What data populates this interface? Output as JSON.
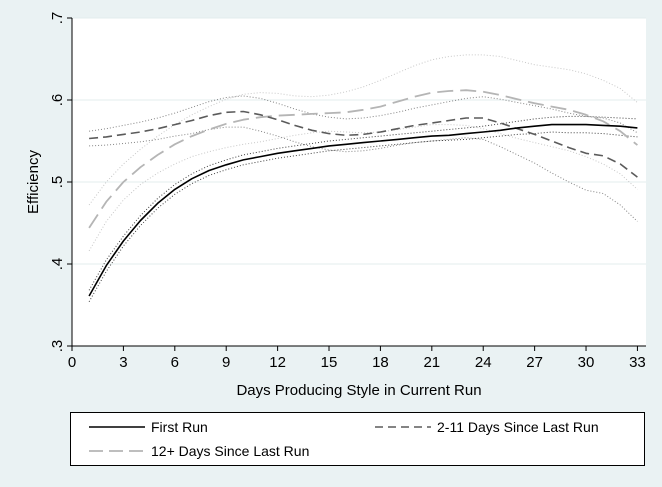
{
  "chart_data": {
    "type": "line",
    "title": "",
    "xlabel": "Days Producing Style in Current Run",
    "ylabel": "Efficiency",
    "xlim": [
      0,
      33.5
    ],
    "ylim": [
      0.3,
      0.7
    ],
    "xticks": [
      0,
      3,
      6,
      9,
      12,
      15,
      18,
      21,
      24,
      27,
      30,
      33
    ],
    "yticks": [
      0.3,
      0.4,
      0.5,
      0.6,
      0.7
    ],
    "ytick_labels": [
      ".3",
      ".4",
      ".5",
      ".6",
      ".7"
    ],
    "grid": true,
    "legend_placement": "bottom",
    "series": [
      {
        "name": "First Run",
        "style": "solid",
        "color": "#000000",
        "x": [
          1,
          2,
          3,
          4,
          5,
          6,
          7,
          8,
          9,
          10,
          11,
          12,
          13,
          14,
          15,
          16,
          17,
          18,
          19,
          20,
          21,
          22,
          23,
          24,
          25,
          26,
          27,
          28,
          29,
          30,
          31,
          32,
          33
        ],
        "y": [
          0.361,
          0.398,
          0.428,
          0.453,
          0.474,
          0.491,
          0.504,
          0.514,
          0.521,
          0.527,
          0.531,
          0.535,
          0.538,
          0.541,
          0.544,
          0.546,
          0.548,
          0.55,
          0.552,
          0.554,
          0.556,
          0.557,
          0.559,
          0.561,
          0.563,
          0.566,
          0.568,
          0.57,
          0.57,
          0.57,
          0.569,
          0.568,
          0.566
        ],
        "ci_upper": [
          0.368,
          0.405,
          0.434,
          0.459,
          0.48,
          0.497,
          0.51,
          0.52,
          0.527,
          0.533,
          0.537,
          0.541,
          0.544,
          0.547,
          0.55,
          0.552,
          0.554,
          0.556,
          0.558,
          0.56,
          0.562,
          0.564,
          0.566,
          0.568,
          0.571,
          0.574,
          0.577,
          0.579,
          0.58,
          0.58,
          0.579,
          0.578,
          0.577
        ],
        "ci_lower": [
          0.354,
          0.391,
          0.422,
          0.447,
          0.468,
          0.485,
          0.498,
          0.508,
          0.515,
          0.521,
          0.525,
          0.529,
          0.532,
          0.535,
          0.538,
          0.54,
          0.542,
          0.544,
          0.546,
          0.548,
          0.55,
          0.551,
          0.552,
          0.554,
          0.556,
          0.558,
          0.559,
          0.561,
          0.56,
          0.56,
          0.559,
          0.557,
          0.555
        ]
      },
      {
        "name": "2-11 Days Since Last Run",
        "style": "dash",
        "color": "#5b5b5b",
        "x": [
          1,
          2,
          3,
          4,
          5,
          6,
          7,
          8,
          9,
          10,
          11,
          12,
          13,
          14,
          15,
          16,
          17,
          18,
          19,
          20,
          21,
          22,
          23,
          24,
          25,
          26,
          27,
          28,
          29,
          30,
          31,
          32,
          33
        ],
        "y": [
          0.553,
          0.555,
          0.558,
          0.561,
          0.565,
          0.57,
          0.575,
          0.581,
          0.585,
          0.586,
          0.582,
          0.576,
          0.569,
          0.563,
          0.559,
          0.557,
          0.558,
          0.561,
          0.565,
          0.569,
          0.572,
          0.575,
          0.578,
          0.578,
          0.572,
          0.565,
          0.558,
          0.55,
          0.542,
          0.535,
          0.532,
          0.522,
          0.506
        ],
        "ci_upper": [
          0.562,
          0.565,
          0.569,
          0.573,
          0.578,
          0.584,
          0.591,
          0.598,
          0.603,
          0.605,
          0.602,
          0.596,
          0.589,
          0.583,
          0.579,
          0.577,
          0.578,
          0.581,
          0.585,
          0.59,
          0.594,
          0.598,
          0.602,
          0.604,
          0.601,
          0.597,
          0.593,
          0.589,
          0.584,
          0.58,
          0.578,
          0.572,
          0.56
        ],
        "ci_lower": [
          0.544,
          0.545,
          0.547,
          0.549,
          0.552,
          0.556,
          0.559,
          0.564,
          0.567,
          0.567,
          0.562,
          0.556,
          0.549,
          0.543,
          0.539,
          0.537,
          0.538,
          0.541,
          0.545,
          0.548,
          0.55,
          0.552,
          0.554,
          0.552,
          0.543,
          0.533,
          0.523,
          0.511,
          0.5,
          0.49,
          0.486,
          0.472,
          0.452
        ]
      },
      {
        "name": "12+ Days Since Last Run",
        "style": "longdash",
        "color": "#b5b5b5",
        "x": [
          1,
          2,
          3,
          4,
          5,
          6,
          7,
          8,
          9,
          10,
          11,
          12,
          13,
          14,
          15,
          16,
          17,
          18,
          19,
          20,
          21,
          22,
          23,
          24,
          25,
          26,
          27,
          28,
          29,
          30,
          31,
          32,
          33
        ],
        "y": [
          0.444,
          0.476,
          0.5,
          0.518,
          0.533,
          0.546,
          0.556,
          0.564,
          0.571,
          0.576,
          0.579,
          0.581,
          0.582,
          0.583,
          0.584,
          0.585,
          0.588,
          0.592,
          0.598,
          0.604,
          0.609,
          0.611,
          0.612,
          0.61,
          0.606,
          0.601,
          0.596,
          0.592,
          0.588,
          0.582,
          0.574,
          0.562,
          0.545
        ],
        "ci_upper": [
          0.472,
          0.5,
          0.522,
          0.54,
          0.556,
          0.57,
          0.582,
          0.592,
          0.601,
          0.607,
          0.609,
          0.608,
          0.605,
          0.604,
          0.606,
          0.61,
          0.616,
          0.624,
          0.633,
          0.642,
          0.649,
          0.653,
          0.655,
          0.655,
          0.653,
          0.648,
          0.643,
          0.64,
          0.637,
          0.632,
          0.624,
          0.614,
          0.597
        ],
        "ci_lower": [
          0.416,
          0.452,
          0.478,
          0.497,
          0.511,
          0.522,
          0.531,
          0.537,
          0.542,
          0.546,
          0.549,
          0.553,
          0.557,
          0.56,
          0.562,
          0.561,
          0.56,
          0.561,
          0.564,
          0.567,
          0.57,
          0.57,
          0.569,
          0.565,
          0.559,
          0.553,
          0.548,
          0.543,
          0.538,
          0.531,
          0.522,
          0.51,
          0.491
        ]
      }
    ]
  }
}
